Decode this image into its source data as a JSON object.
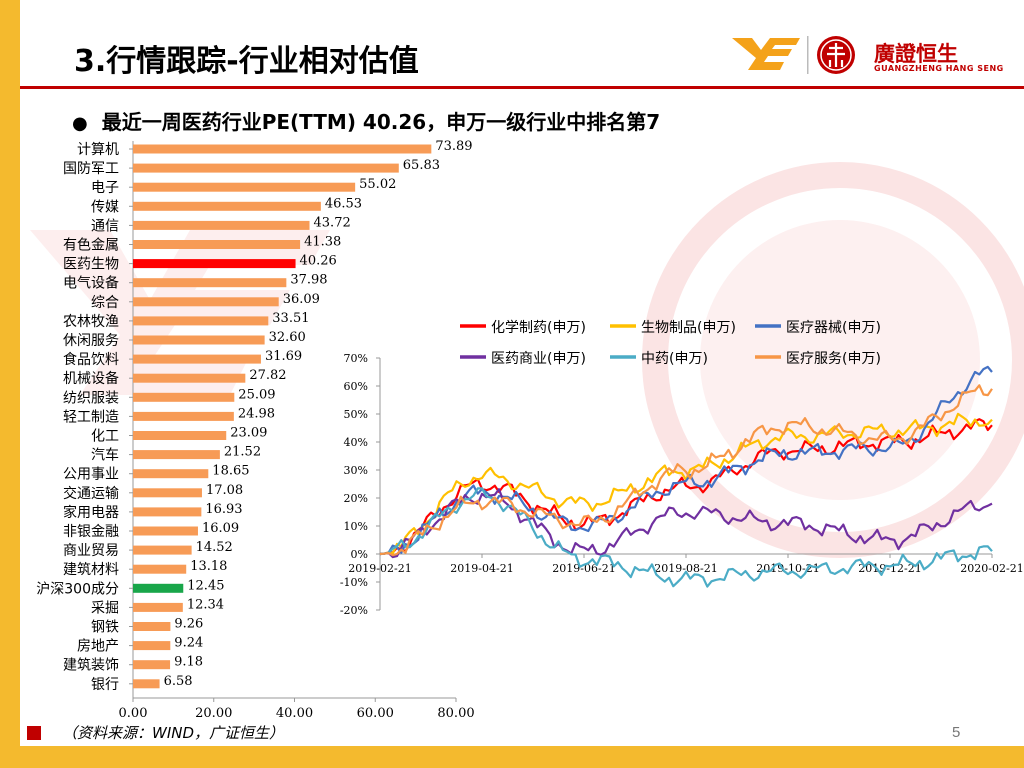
{
  "header": {
    "title": "3.行情跟踪-行业相对估值"
  },
  "logo": {
    "name": "廣證恒生",
    "sub": "GUANGZHENG HANG SENG",
    "mark_glyph": "E"
  },
  "subtitle": {
    "bullet": "●",
    "text": "最近一周医药行业PE(TTM) 40.26，申万一级行业中排名第7"
  },
  "colors": {
    "bar_default": "#f79b56",
    "bar_highlight": "#ff0000",
    "bar_index": "#19a64a",
    "accent": "#c00000",
    "side": "#f4ba2e"
  },
  "chart_data": [
    {
      "type": "bar",
      "orientation": "horizontal",
      "categories": [
        "计算机",
        "国防军工",
        "电子",
        "传媒",
        "通信",
        "有色金属",
        "医药生物",
        "电气设备",
        "综合",
        "农林牧渔",
        "休闲服务",
        "食品饮料",
        "机械设备",
        "纺织服装",
        "轻工制造",
        "化工",
        "汽车",
        "公用事业",
        "交通运输",
        "家用电器",
        "非银金融",
        "商业贸易",
        "建筑材料",
        "沪深300成分",
        "采掘",
        "钢铁",
        "房地产",
        "建筑装饰",
        "银行"
      ],
      "values": [
        73.89,
        65.83,
        55.02,
        46.53,
        43.72,
        41.38,
        40.26,
        37.98,
        36.09,
        33.51,
        32.6,
        31.69,
        27.82,
        25.09,
        24.98,
        23.09,
        21.52,
        18.65,
        17.08,
        16.93,
        16.09,
        14.52,
        13.18,
        12.45,
        12.34,
        9.26,
        9.24,
        9.18,
        6.58
      ],
      "value_labels": [
        "73.89",
        "65.83",
        "55.02",
        "46.53",
        "43.72",
        "41.38",
        "40.26",
        "37.98",
        "36.09",
        "33.51",
        "32.60",
        "31.69",
        "27.82",
        "25.09",
        "24.98",
        "23.09",
        "21.52",
        "18.65",
        "17.08",
        "16.93",
        "16.09",
        "14.52",
        "13.18",
        "12.45",
        "12.34",
        "9.26",
        "9.24",
        "9.18",
        "6.58"
      ],
      "highlight": {
        "医药生物": "highlight",
        "沪深300成分": "index"
      },
      "xlim": [
        0,
        80
      ],
      "xticks": [
        "0.00",
        "20.00",
        "40.00",
        "60.00",
        "80.00"
      ],
      "title": ""
    },
    {
      "type": "line",
      "x": [
        "2019-02-21",
        "2019-04-21",
        "2019-06-21",
        "2019-08-21",
        "2019-10-21",
        "2019-12-21",
        "2020-02-21"
      ],
      "xticks": [
        "2019-02-21",
        "2019-04-21",
        "2019-06-21",
        "2019-08-21",
        "2019-10-21",
        "2019-12-21",
        "2020-02-21"
      ],
      "ylim": [
        -0.2,
        0.7
      ],
      "yticks": [
        "70%",
        "60%",
        "50%",
        "40%",
        "30%",
        "20%",
        "10%",
        "0%",
        "-10%",
        "-20%"
      ],
      "series": [
        {
          "name": "化学制药(申万)",
          "color": "#ff0000",
          "values": [
            0,
            0.25,
            0.11,
            0.24,
            0.37,
            0.4,
            0.46
          ]
        },
        {
          "name": "生物制品(申万)",
          "color": "#ffc000",
          "values": [
            0,
            0.28,
            0.18,
            0.3,
            0.42,
            0.44,
            0.48
          ]
        },
        {
          "name": "医疗器械(申万)",
          "color": "#4472c4",
          "values": [
            0,
            0.22,
            0.1,
            0.25,
            0.36,
            0.38,
            0.65
          ]
        },
        {
          "name": "医药商业(申万)",
          "color": "#7030a0",
          "values": [
            0,
            0.21,
            0.01,
            0.15,
            0.11,
            0.05,
            0.18
          ]
        },
        {
          "name": "中药(申万)",
          "color": "#4bacc6",
          "values": [
            0,
            0.21,
            -0.02,
            -0.09,
            -0.06,
            -0.04,
            0.01
          ]
        },
        {
          "name": "医疗服务(申万)",
          "color": "#f79646",
          "values": [
            0,
            0.19,
            0.11,
            0.3,
            0.46,
            0.41,
            0.59
          ]
        }
      ]
    }
  ],
  "footer": {
    "source": "（资料来源：WIND，广证恒生）",
    "page": "5"
  }
}
